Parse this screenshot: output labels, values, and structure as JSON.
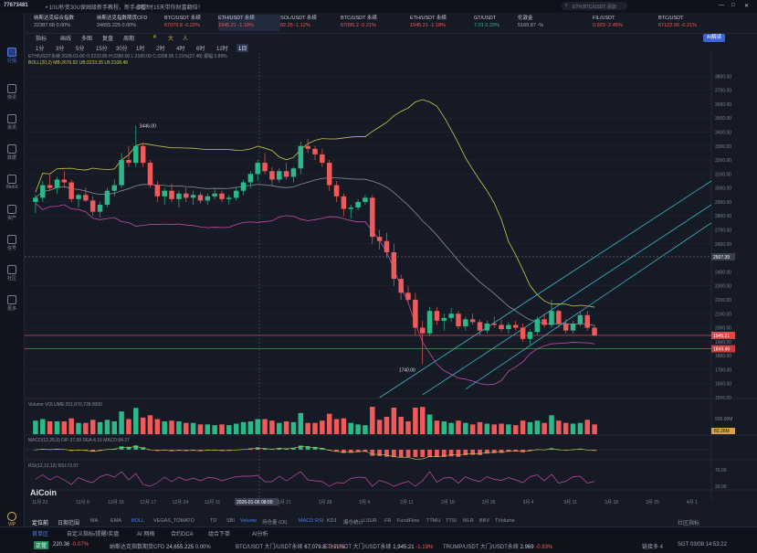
{
  "titlebar": {
    "account": "77673481",
    "notice_1": "• 10U秒变30U，",
    "notice_2": "保姆级新手教程，新手必看！",
    "notice_3": "倒计时15天带你财富翻倍！",
    "search_placeholder": "ETH BTC/USDT 添加",
    "win_min": "—",
    "win_max": "□",
    "win_close": "✕"
  },
  "leftnav": {
    "items": [
      {
        "label": "行情",
        "icon": "chart-icon"
      },
      {
        "label": "快讯",
        "icon": "news-icon"
      },
      {
        "label": "资讯",
        "icon": "article-icon"
      },
      {
        "label": "数据",
        "icon": "data-icon"
      },
      {
        "label": "Web3",
        "icon": "web3-icon"
      },
      {
        "label": "资产",
        "icon": "wallet-icon"
      },
      {
        "label": "信号",
        "icon": "signal-icon"
      },
      {
        "label": "社区",
        "icon": "community-icon"
      },
      {
        "label": "更多",
        "icon": "more-icon"
      }
    ],
    "vip": "VIP"
  },
  "tickers": [
    {
      "name": "纳斯达克综合指数",
      "price": "22387.68",
      "change": "0.00%",
      "dir": "flat"
    },
    {
      "name": "纳斯达克指数期货CFD",
      "price": "24655.225",
      "change": "0.00%",
      "dir": "flat"
    },
    {
      "name": "BTC/USDT 永续",
      "price": "67079.8",
      "change": "-0.22%",
      "dir": "down"
    },
    {
      "name": "ETH/USDT 永续",
      "price": "1945.21",
      "change": "-1.19%",
      "dir": "down"
    },
    {
      "name": "SOL/USDT 永续",
      "price": "82.25",
      "change": "-1.12%",
      "dir": "down"
    },
    {
      "name": "BTC/USDT 永续",
      "price": "67085.2",
      "change": "-0.21%",
      "dir": "down"
    },
    {
      "name": "ETH/USDT 永续",
      "price": "1945.21",
      "change": "-1.18%",
      "dir": "down"
    },
    {
      "name": "GT/USDT",
      "price": "7.01",
      "change": "0.29%",
      "dir": "up"
    },
    {
      "name": "伦敦金",
      "price": "5169.87",
      "change": "-%",
      "dir": "flat"
    },
    {
      "name": "FIL/USDT",
      "price": "0.929",
      "change": "-2.45%",
      "dir": "down"
    },
    {
      "name": "BTC/USDT",
      "price": "67122.00",
      "change": "-0.21%",
      "dir": "down"
    }
  ],
  "toolbar": {
    "items": [
      "指标",
      "画线",
      "多图",
      "复盘",
      "周期"
    ],
    "icons": [
      "✕",
      "大",
      "人"
    ],
    "ai_button": "AI解读"
  },
  "periods": {
    "items": [
      "1分",
      "3分",
      "5分",
      "15分",
      "30分",
      "1时",
      "2时",
      "4时",
      "6时",
      "12时",
      "1日"
    ],
    "active": "1日"
  },
  "legend": {
    "line1": "ETH/USDT永续 2026-01-06 O:2222.85 H:2280.00 L:2180.00 C:2208.05 1.21%(27.48) 振幅:3.89%",
    "line2": "BOLL(20,2) MB:2670.92 UB:3233.35 LB:2108.48"
  },
  "colors": {
    "up": "#2bb98a",
    "down": "#f05a5a",
    "accent": "#4b7cf3",
    "boll_upper": "#c8c94a",
    "boll_mid": "#8a8fa0",
    "boll_lower": "#c94aa8",
    "channel": "#3fb6c7"
  },
  "chart_data": {
    "type": "candlestick",
    "symbol": "ETH/USDT",
    "ylim": [
      1500,
      3900
    ],
    "y_ticks": [
      3800,
      3700,
      3600,
      3500,
      3400,
      3300,
      3200,
      3100,
      3000,
      2900,
      2800,
      2700,
      2600,
      2400,
      2300,
      2200,
      2100,
      2000,
      1900,
      1800,
      1700,
      1600,
      1500
    ],
    "x_ticks": [
      "11月 23",
      "12月 8",
      "12月 16",
      "12月 17",
      "12月 24",
      "12月 31",
      "2026-01-06 08:00",
      "1月 21",
      "1月 28",
      "2月 4",
      "2月 11",
      "2月 18",
      "2月 25",
      "3月 4",
      "3月 11",
      "3月 18",
      "3月 25",
      "4月 1"
    ],
    "x_positions": [
      0,
      15,
      26,
      37,
      48,
      59,
      70,
      84,
      98,
      112,
      126,
      140,
      154,
      168,
      182,
      196,
      210,
      224
    ],
    "candles": [
      [
        2900,
        2950,
        2820,
        2930
      ],
      [
        2930,
        3050,
        2900,
        3020
      ],
      [
        3020,
        3100,
        2980,
        3000
      ],
      [
        3000,
        3080,
        2960,
        3060
      ],
      [
        3060,
        3120,
        3000,
        3040
      ],
      [
        3040,
        3060,
        2900,
        2920
      ],
      [
        2920,
        2960,
        2860,
        2950
      ],
      [
        2950,
        3000,
        2900,
        2910
      ],
      [
        2910,
        2940,
        2800,
        2830
      ],
      [
        2830,
        2900,
        2790,
        2880
      ],
      [
        2880,
        3000,
        2860,
        2980
      ],
      [
        2980,
        3060,
        2940,
        3020
      ],
      [
        3020,
        3250,
        3000,
        3200
      ],
      [
        3200,
        3300,
        3150,
        3180
      ],
      [
        3180,
        3446,
        3150,
        3300
      ],
      [
        3300,
        3320,
        3150,
        3180
      ],
      [
        3180,
        3200,
        3000,
        3020
      ],
      [
        3020,
        3050,
        2900,
        2940
      ],
      [
        2940,
        3000,
        2880,
        2980
      ],
      [
        2980,
        3030,
        2900,
        2920
      ],
      [
        2920,
        2980,
        2860,
        2960
      ],
      [
        2960,
        3000,
        2900,
        2930
      ],
      [
        2930,
        2980,
        2880,
        2950
      ],
      [
        2950,
        2970,
        2890,
        2910
      ],
      [
        2910,
        2960,
        2880,
        2940
      ],
      [
        2940,
        2990,
        2920,
        2960
      ],
      [
        2960,
        2980,
        2900,
        2920
      ],
      [
        2920,
        2950,
        2880,
        2930
      ],
      [
        2930,
        3000,
        2910,
        2980
      ],
      [
        2980,
        3060,
        2950,
        3040
      ],
      [
        3040,
        3120,
        3000,
        3100
      ],
      [
        3100,
        3200,
        3050,
        3180
      ],
      [
        3180,
        3250,
        3100,
        3120
      ],
      [
        3120,
        3150,
        3020,
        3060
      ],
      [
        3060,
        3140,
        3040,
        3120
      ],
      [
        3120,
        3180,
        3060,
        3080
      ],
      [
        3080,
        3150,
        3040,
        3140
      ],
      [
        3140,
        3330,
        3100,
        3300
      ],
      [
        3300,
        3350,
        3250,
        3280
      ],
      [
        3280,
        3300,
        3200,
        3240
      ],
      [
        3240,
        3280,
        3150,
        3180
      ],
      [
        3180,
        3200,
        2980,
        3020
      ],
      [
        3020,
        3050,
        2900,
        2940
      ],
      [
        2940,
        2960,
        2800,
        2850
      ],
      [
        2850,
        2880,
        2780,
        2860
      ],
      [
        2860,
        2920,
        2840,
        2900
      ],
      [
        2900,
        2950,
        2880,
        2930
      ],
      [
        2930,
        2950,
        2600,
        2650
      ],
      [
        2650,
        2700,
        2560,
        2620
      ],
      [
        2620,
        2680,
        2500,
        2540
      ],
      [
        2540,
        2600,
        2300,
        2350
      ],
      [
        2350,
        2380,
        2200,
        2250
      ],
      [
        2250,
        2300,
        2180,
        2200
      ],
      [
        2200,
        2250,
        1950,
        2000
      ],
      [
        2000,
        2050,
        1740,
        1960
      ],
      [
        1960,
        2150,
        1940,
        2120
      ],
      [
        2120,
        2150,
        2020,
        2050
      ],
      [
        2050,
        2100,
        1980,
        2070
      ],
      [
        2070,
        2140,
        2040,
        2100
      ],
      [
        2100,
        2120,
        1990,
        2010
      ],
      [
        2010,
        2080,
        1980,
        2060
      ],
      [
        2060,
        2100,
        2020,
        2040
      ],
      [
        2040,
        2060,
        1950,
        1980
      ],
      [
        1980,
        2050,
        1960,
        2030
      ],
      [
        2030,
        2080,
        2000,
        2020
      ],
      [
        2020,
        2060,
        1970,
        1990
      ],
      [
        1990,
        2040,
        1960,
        2020
      ],
      [
        2020,
        2050,
        1980,
        2000
      ],
      [
        2000,
        2030,
        1900,
        1920
      ],
      [
        1920,
        1990,
        1880,
        1970
      ],
      [
        1970,
        2080,
        1950,
        2060
      ],
      [
        2060,
        2100,
        2000,
        2020
      ],
      [
        2020,
        2200,
        2000,
        2120
      ],
      [
        2120,
        2130,
        2000,
        2030
      ],
      [
        2030,
        2060,
        1960,
        1980
      ],
      [
        1980,
        2050,
        1960,
        2030
      ],
      [
        2030,
        2110,
        2010,
        2090
      ],
      [
        2090,
        2120,
        1980,
        2000
      ],
      [
        2000,
        2020,
        1940,
        1945
      ]
    ],
    "current_price": 1945.21,
    "price_labels": [
      "2507.39",
      "1945.21",
      "1849.49"
    ],
    "annotations": [
      {
        "text": "3446.00"
      },
      {
        "text": "1740.00"
      }
    ],
    "volume_label": "Volume VOLUME:251,870,728.0000",
    "volume_ticks": [
      "500.00M",
      "82.26M"
    ],
    "macd_label": "MACD(12,26,9) DIF:37.99 DEA:4.15 MACD:84.27",
    "rsi_label": "RSI(12,12,12) RSI:73.97",
    "rsi_ticks": [
      "70.00",
      "30.00"
    ]
  },
  "bottom_tabs": {
    "left": [
      "定位前",
      "日期范围"
    ],
    "indicators": [
      "MA",
      "EMA",
      "BOLL",
      "VEGAS_TOMATO",
      "TD",
      "SBI",
      "Volume",
      "持仓量 (OI)",
      "MACD",
      "RSI",
      "KDJ",
      "爆仓统计",
      "LSUR",
      "FR",
      "FundFlow",
      "TTMU",
      "TTSI",
      "MLR",
      "BBV",
      "TVolume"
    ],
    "right": "社区指标",
    "logo": "AiCoin"
  },
  "status": {
    "tabs": [
      "首单区",
      "自定义指标/提醒/实盘",
      "AI 网格",
      "合约DCA",
      "组合下单",
      "AI分析"
    ],
    "connected": "正常",
    "items": [
      {
        "name": "",
        "price": "220.36",
        "change": "-0.07%"
      },
      {
        "name": "纳斯达克指数期货CFD",
        "price": "24,655.225",
        "change": "0.00%"
      },
      {
        "name": "BTC/USDT 大门/USDT永续",
        "price": "67,079.8",
        "change": "-0.22%"
      },
      {
        "name": "ETH/USDT 大门/USDT永续",
        "price": "1,945.21",
        "change": "-1.19%"
      },
      {
        "name": "TRUMP/USDT 大门/USDT永续",
        "price": "2.969",
        "change": "-0.93%"
      }
    ],
    "right_1": "链接多 4",
    "right_2": "SGT 03/08 14:53:22"
  }
}
